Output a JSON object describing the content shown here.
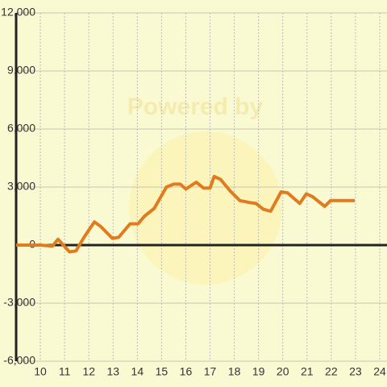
{
  "chart_data": {
    "type": "line",
    "watermark": "Powered by",
    "x": [
      9,
      10,
      10.5,
      10.73,
      11.2,
      11.47,
      11.8,
      12.23,
      12.5,
      12.97,
      13.23,
      13.7,
      14.03,
      14.3,
      14.7,
      15.2,
      15.5,
      15.77,
      16,
      16.43,
      16.73,
      17,
      17.17,
      17.43,
      17.83,
      18.23,
      18.63,
      18.9,
      19.2,
      19.5,
      19.93,
      20.2,
      20.7,
      20.97,
      21.23,
      21.73,
      21.97,
      22.97
    ],
    "series": [
      {
        "color": "#e07b20",
        "values": [
          0,
          0,
          -50,
          300,
          -350,
          -300,
          400,
          1200,
          950,
          350,
          400,
          1100,
          1100,
          1500,
          1900,
          3000,
          3150,
          3150,
          2900,
          3250,
          2950,
          2950,
          3550,
          3400,
          2800,
          2300,
          2200,
          2150,
          1850,
          1750,
          2750,
          2700,
          2150,
          2650,
          2500,
          2000,
          2300,
          2300
        ]
      }
    ],
    "xlim": [
      9,
      24.3
    ],
    "xticks": [
      10,
      11,
      12,
      13,
      14,
      15,
      16,
      17,
      18,
      19,
      20,
      21,
      22,
      23,
      24
    ],
    "ylim": [
      -6000,
      12000
    ],
    "yticks": [
      {
        "value": -6000,
        "label": "-6,000"
      },
      {
        "value": -3000,
        "label": "-3,000"
      },
      0,
      {
        "value": 3000,
        "label": "3,000"
      },
      {
        "value": 6000,
        "label": "6,000"
      },
      {
        "value": 9000,
        "label": "9,000"
      },
      {
        "value": 12000,
        "label": "12,000"
      }
    ],
    "grid": true
  }
}
